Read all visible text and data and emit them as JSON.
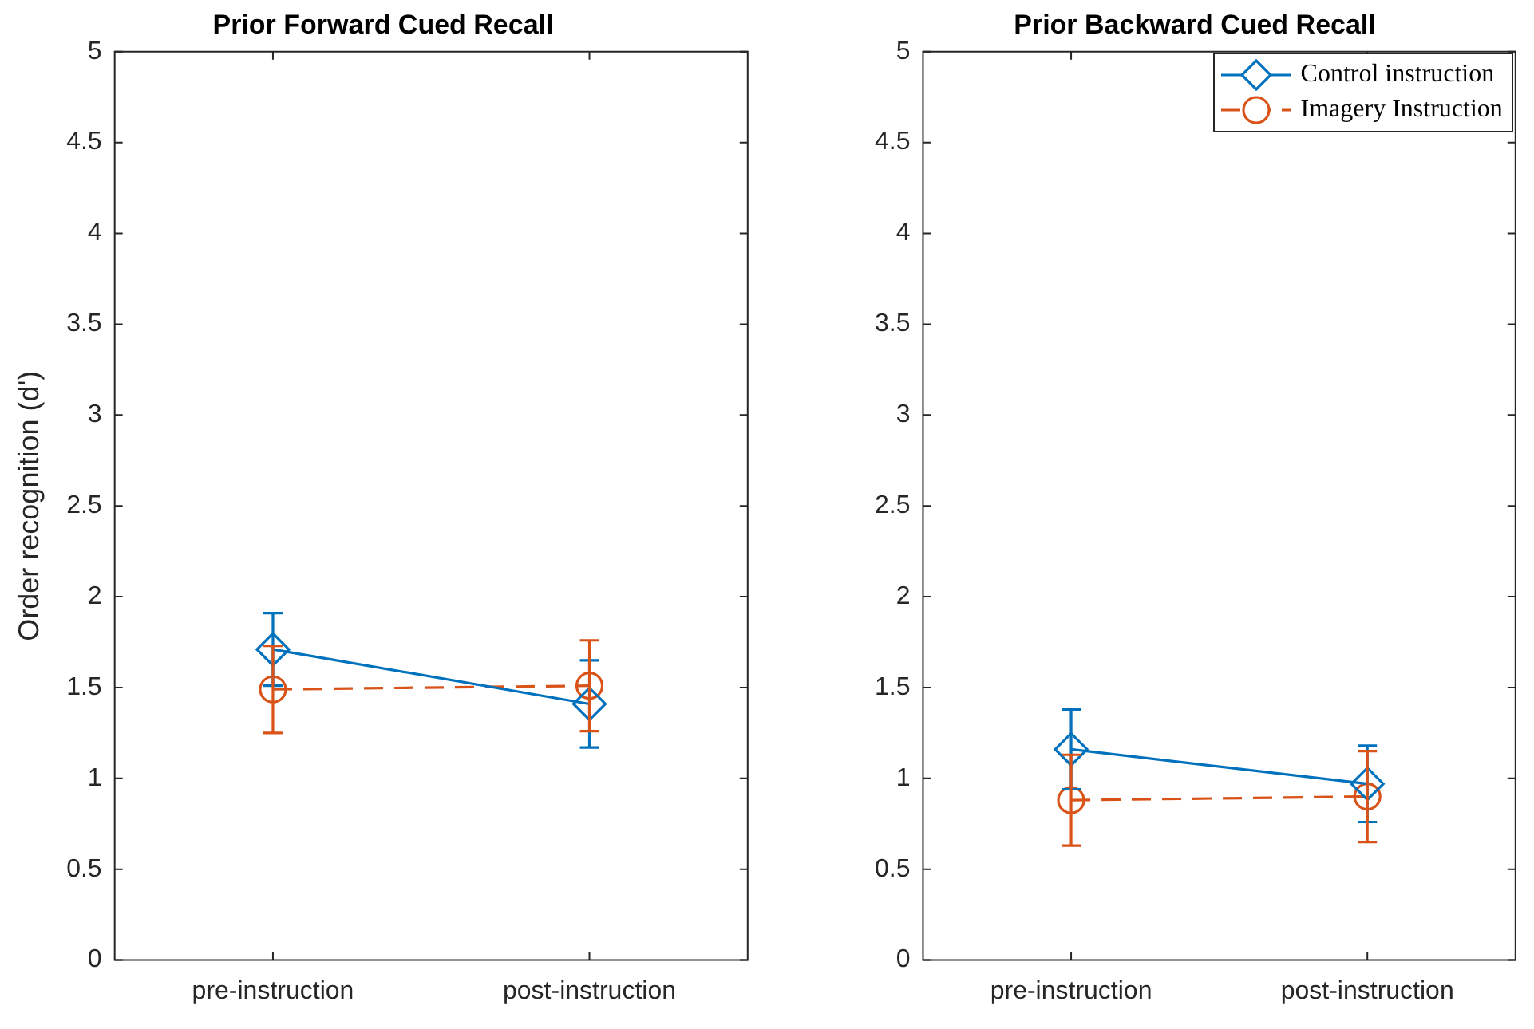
{
  "chart_data": [
    {
      "type": "line",
      "title": "Prior Forward Cued Recall",
      "ylabel": "Order recognition (d')",
      "categories": [
        "pre-instruction",
        "post-instruction"
      ],
      "series": [
        {
          "color": "#0072bd",
          "values": [
            1.71,
            1.41
          ],
          "errors": [
            0.2,
            0.24
          ],
          "marker": "diamond",
          "line_style": "solid"
        },
        {
          "color": "#d95319",
          "values": [
            1.49,
            1.51
          ],
          "errors": [
            0.24,
            0.25
          ],
          "marker": "circle",
          "line_style": "dashed"
        }
      ],
      "ylim": [
        0,
        5
      ],
      "yticks": [
        0,
        0.5,
        1,
        1.5,
        2,
        2.5,
        3,
        3.5,
        4,
        4.5,
        5
      ],
      "legend": false
    },
    {
      "type": "line",
      "title": "Prior Backward Cued Recall",
      "categories": [
        "pre-instruction",
        "post-instruction"
      ],
      "series": [
        {
          "name": "Control instruction",
          "color": "#0072bd",
          "values": [
            1.16,
            0.97
          ],
          "errors": [
            0.22,
            0.21
          ],
          "marker": "diamond",
          "line_style": "solid"
        },
        {
          "name": "Imagery Instruction",
          "color": "#d95319",
          "values": [
            0.88,
            0.9
          ],
          "errors": [
            0.25,
            0.25
          ],
          "marker": "circle",
          "line_style": "dashed"
        }
      ],
      "ylim": [
        0,
        5
      ],
      "yticks": [
        0,
        0.5,
        1,
        1.5,
        2,
        2.5,
        3,
        3.5,
        4,
        4.5,
        5
      ],
      "legend": "top right"
    }
  ]
}
